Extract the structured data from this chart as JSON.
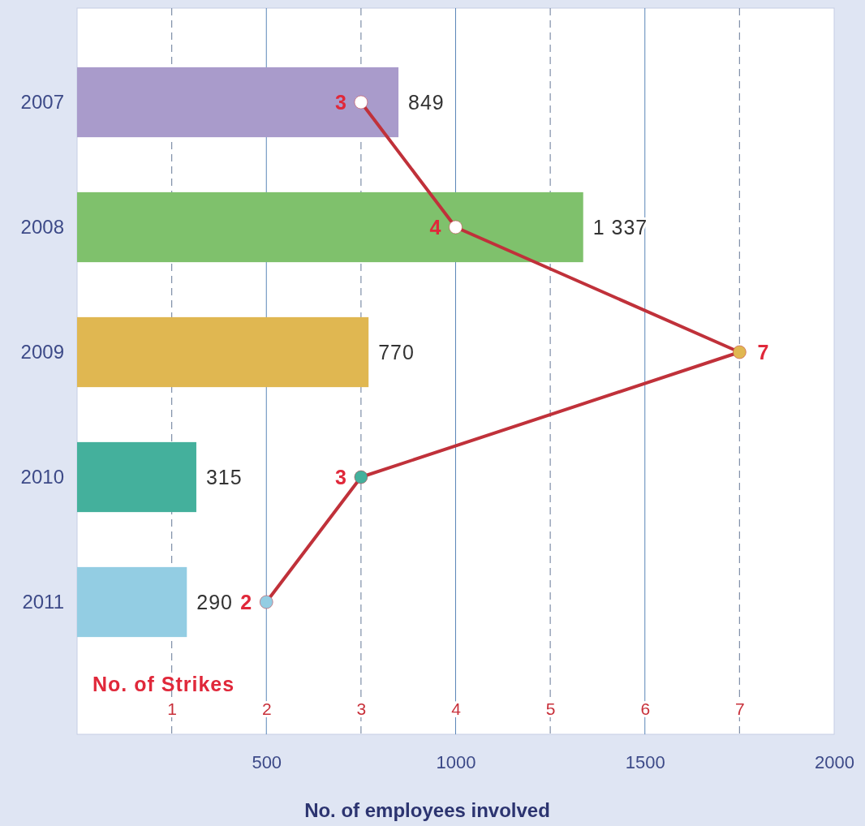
{
  "chart_data": {
    "type": "bar",
    "orientation": "horizontal",
    "xlabel": "No. of employees involved",
    "x2label": "No. of Strikes",
    "categories": [
      "2007",
      "2008",
      "2009",
      "2010",
      "2011"
    ],
    "xlim": [
      0,
      2000
    ],
    "xticks": [
      500,
      1000,
      1500,
      2000
    ],
    "x2lim": [
      0,
      8
    ],
    "x2ticks": [
      1,
      2,
      3,
      4,
      5,
      6,
      7
    ],
    "grid": true,
    "series": [
      {
        "values": [
          849,
          1337,
          770,
          315,
          290
        ],
        "colors": [
          "#a99bcb",
          "#7fc16c",
          "#e0b751",
          "#44b09c",
          "#93cde3"
        ],
        "value_labels": [
          "849",
          "1 337",
          "770",
          "315",
          "290"
        ]
      },
      {
        "type": "line",
        "axis": "x2",
        "color": "#c0313a",
        "values": [
          3,
          4,
          7,
          3,
          2
        ],
        "colors": [
          "#ffffff",
          "#ffffff",
          "#e0b751",
          "#44b09c",
          "#93cde3"
        ],
        "marker": "circle",
        "value_labels": [
          "3",
          "4",
          "7",
          "3",
          "2"
        ]
      }
    ]
  }
}
